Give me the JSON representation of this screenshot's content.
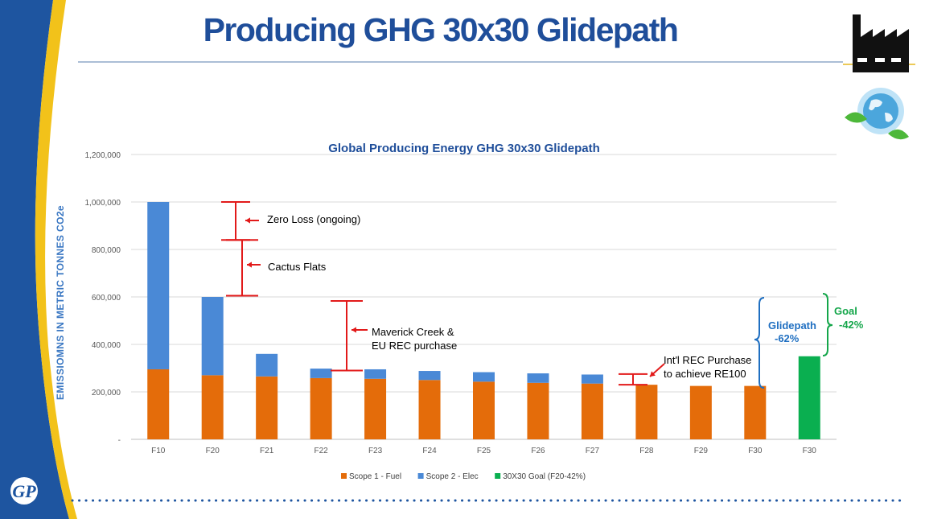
{
  "slide": {
    "title": "Producing GHG 30x30 Glidepath"
  },
  "icons": {
    "factory": "factory-icon",
    "globe": "globe-leaf-icon",
    "logo": "gp-logo-icon"
  },
  "colors": {
    "title": "#1f4e9a",
    "fuel": "#e46c0a",
    "elec": "#4a89d6",
    "goal": "#0aaf50",
    "annotation": "#e21a1a",
    "glidepath": "#1f6fc1"
  },
  "chart_data": {
    "type": "bar",
    "stacked": true,
    "title": "Global Producing Energy GHG 30x30 Glidepath",
    "xlabel": "",
    "ylabel": "EMISSIOMNS IN METRIC TONNES CO2e",
    "ylim": [
      0,
      1200000
    ],
    "yticks": [
      0,
      200000,
      400000,
      600000,
      800000,
      1000000,
      1200000
    ],
    "ytick_labels": [
      "-",
      "200,000",
      "400,000",
      "600,000",
      "800,000",
      "1,000,000",
      "1,200,000"
    ],
    "categories": [
      "F10",
      "F20",
      "F21",
      "F22",
      "F23",
      "F24",
      "F25",
      "F26",
      "F27",
      "F28",
      "F29",
      "F30",
      "F30"
    ],
    "series": [
      {
        "name": "Scope 1 - Fuel",
        "values": [
          295000,
          270000,
          265000,
          258000,
          255000,
          250000,
          243000,
          238000,
          235000,
          230000,
          225000,
          225000,
          0
        ]
      },
      {
        "name": "Scope 2 - Elec",
        "values": [
          705000,
          330000,
          95000,
          40000,
          40000,
          38000,
          40000,
          40000,
          38000,
          0,
          0,
          0,
          0
        ]
      },
      {
        "name": "30X30 Goal (F20-42%)",
        "values": [
          0,
          0,
          0,
          0,
          0,
          0,
          0,
          0,
          0,
          0,
          0,
          0,
          350000
        ]
      }
    ],
    "legend_position": "bottom",
    "grid": true,
    "annotations": [
      {
        "text": "Zero Loss (ongoing)",
        "range": [
          840000,
          1000000
        ]
      },
      {
        "text": "Cactus Flats",
        "range": [
          605000,
          840000
        ]
      },
      {
        "text": "Maverick Creek &",
        "text2": "EU REC purchase",
        "range": [
          290000,
          583000
        ]
      },
      {
        "text": "Int'l REC Purchase",
        "text2": "to achieve RE100",
        "range": [
          230000,
          275000
        ]
      }
    ],
    "glidepath": {
      "label": "Glidepath",
      "value": "-62%"
    },
    "goal": {
      "label": "Goal",
      "value": "-42%"
    }
  }
}
